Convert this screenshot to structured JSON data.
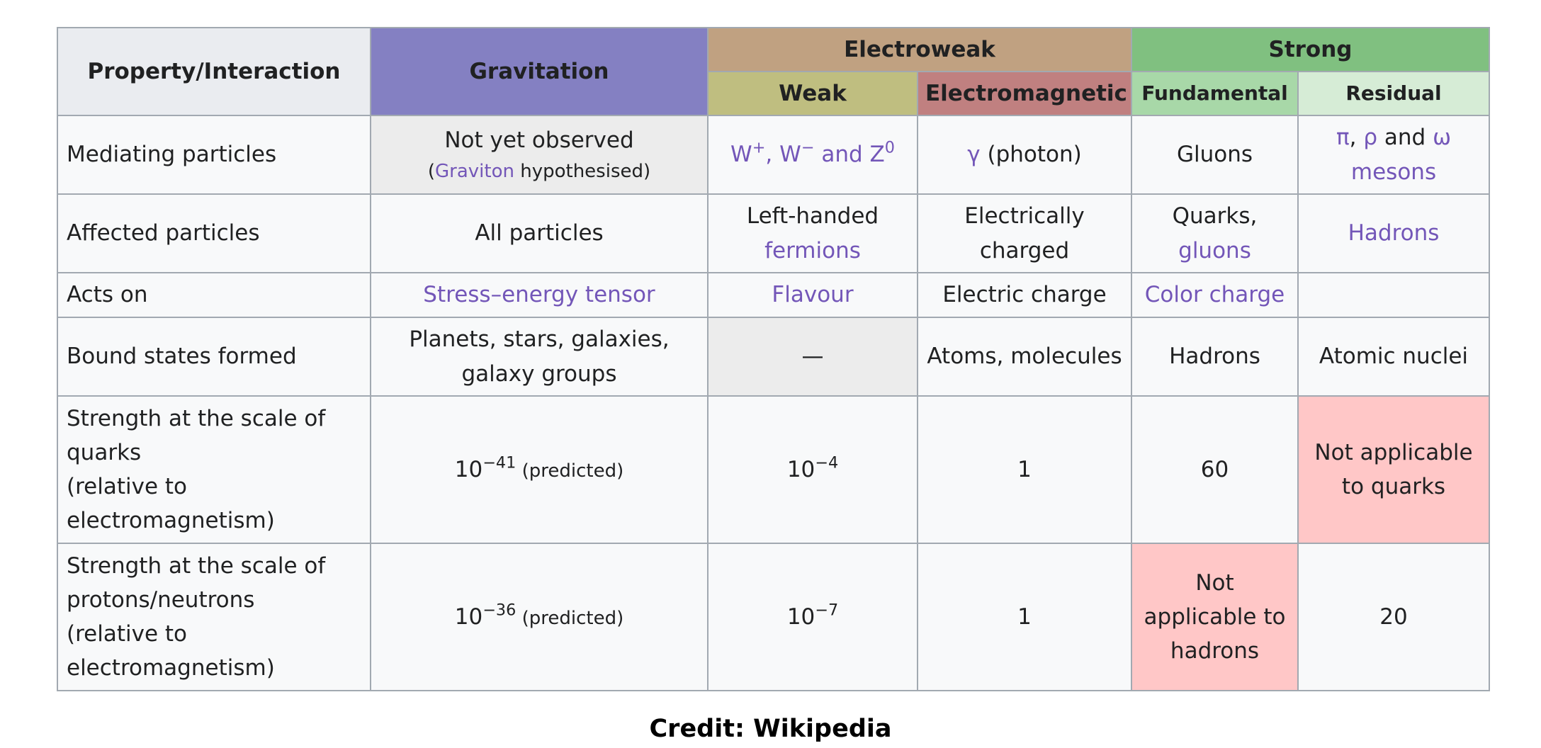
{
  "header": {
    "property": "Property/Interaction",
    "gravitation": "Gravitation",
    "electroweak": "Electroweak",
    "strong": "Strong",
    "weak": "Weak",
    "electromagnetic": "Electromagnetic",
    "fundamental": "Fundamental",
    "residual": "Residual"
  },
  "rows": {
    "mediating": {
      "label": "Mediating particles",
      "grav_main": "Not yet observed",
      "grav_open": "(",
      "grav_link": "Graviton",
      "grav_rest": " hypothesised)",
      "weak_w_plus": "W",
      "weak_plus_sup": "+",
      "weak_sep1": ", ",
      "weak_w_minus": "W",
      "weak_minus_sup": "−",
      "weak_and": " and ",
      "weak_z": "Z",
      "weak_z_sup": "0",
      "em_link": "γ",
      "em_rest": " (photon)",
      "fund": "Gluons",
      "res_pi": "π",
      "res_sep": ", ",
      "res_rho": "ρ",
      "res_and": " and ",
      "res_omega": "ω",
      "res_mesons": "mesons"
    },
    "affected": {
      "label": "Affected particles",
      "grav": "All particles",
      "weak_text": "Left-handed",
      "weak_link": "fermions",
      "em": "Electrically charged",
      "fund_text": "Quarks,",
      "fund_link": "gluons",
      "res_link": "Hadrons"
    },
    "acts_on": {
      "label": "Acts on",
      "grav_link": "Stress–energy tensor",
      "weak_link": "Flavour",
      "em": "Electric charge",
      "fund_link": "Color charge",
      "res": ""
    },
    "bound": {
      "label": "Bound states formed",
      "grav": "Planets, stars, galaxies, galaxy groups",
      "weak": "—",
      "em": "Atoms, molecules",
      "fund": "Hadrons",
      "res": "Atomic nuclei"
    },
    "strength_quarks": {
      "label_1": "Strength at the scale of quarks",
      "label_2": "(relative to electromagnetism)",
      "grav_base": "10",
      "grav_exp": "−41",
      "grav_note": " (predicted)",
      "weak_base": "10",
      "weak_exp": "−4",
      "em": "1",
      "fund": "60",
      "res": "Not applicable to quarks"
    },
    "strength_nucleons": {
      "label_1": "Strength at the scale of protons/neutrons",
      "label_2": "(relative to electromagnetism)",
      "grav_base": "10",
      "grav_exp": "−36",
      "grav_note": " (predicted)",
      "weak_base": "10",
      "weak_exp": "−7",
      "em": "1",
      "fund": "Not applicable to hadrons",
      "res": "20"
    }
  },
  "credit": "Credit: Wikipedia",
  "colors": {
    "gravitation": "#8480c2",
    "electroweak": "#c0a181",
    "strong": "#80c080",
    "weak": "#bfbe80",
    "electromagnetic": "#c08080",
    "fundamental": "#a8d8a8",
    "residual": "#d6ecd6",
    "not_applicable": "#ffc7c7",
    "link": "#7356b8"
  }
}
